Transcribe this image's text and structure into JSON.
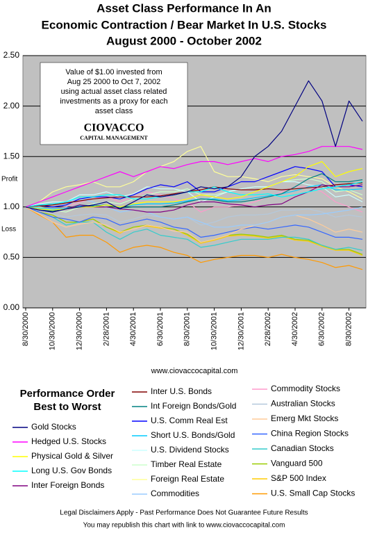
{
  "chart_data": {
    "type": "line",
    "title": [
      "Asset Class Performance In An",
      "Economic Contraction / Bear Market In U.S. Stocks",
      "August 2000 - October 2002"
    ],
    "annotations": {
      "box": [
        "Value of $1.00 invested from",
        "Aug 25 2000 to Oct 7, 2002",
        "using actual asset class related",
        "investments as a proxy for each",
        "asset class"
      ],
      "logo": "CIOVACCO",
      "logo_sub": "CAPITAL MANAGEMENT",
      "profit": "Profit",
      "loss": "Loss",
      "website": "www.ciovaccocapital.com"
    },
    "legend_title": [
      "Performance Order",
      "Best to Worst"
    ],
    "footer": [
      "Legal Disclaimers Apply - Past Performance Does Not Guarantee Future Results",
      "You may republish this chart with link to www.ciovaccocapital.com"
    ],
    "categories": [
      "8/30/2000",
      null,
      "10/30/2000",
      null,
      "12/30/2000",
      null,
      "2/28/2001",
      null,
      "4/30/2001",
      null,
      "6/30/2001",
      null,
      "8/30/2001",
      null,
      "10/30/2001",
      null,
      "12/30/2001",
      null,
      "2/28/2002",
      null,
      "4/30/2002",
      null,
      "6/30/2002",
      null,
      "8/30/2002",
      null
    ],
    "ylim": [
      0,
      2.5
    ],
    "yticks": [
      {
        "value": 0,
        "label": "0.00"
      },
      {
        "value": 0.5,
        "label": "0.50"
      },
      {
        "value": 1,
        "label": "1.00"
      },
      {
        "value": 1.5,
        "label": "1.50"
      },
      {
        "value": 2,
        "label": "2.00"
      },
      {
        "value": 2.5,
        "label": "2.50"
      }
    ],
    "grid": true,
    "series": [
      {
        "name": "Gold Stocks",
        "color": "#000080",
        "values": [
          1.0,
          0.97,
          0.95,
          0.98,
          1.0,
          1.02,
          1.05,
          0.98,
          1.05,
          1.12,
          1.1,
          1.12,
          1.15,
          1.2,
          1.18,
          1.2,
          1.3,
          1.5,
          1.6,
          1.75,
          2.0,
          2.25,
          2.05,
          1.6,
          2.05,
          1.85
        ]
      },
      {
        "name": "Hedged U.S. Stocks",
        "color": "#ff00ff",
        "values": [
          1.0,
          1.05,
          1.1,
          1.15,
          1.2,
          1.25,
          1.3,
          1.35,
          1.3,
          1.35,
          1.4,
          1.38,
          1.42,
          1.45,
          1.45,
          1.42,
          1.45,
          1.48,
          1.45,
          1.5,
          1.52,
          1.55,
          1.6,
          1.6,
          1.6,
          1.57
        ]
      },
      {
        "name": "Physical Gold & Silver",
        "color": "#ffff00",
        "values": [
          1.0,
          0.98,
          0.97,
          0.98,
          1.0,
          1.0,
          1.02,
          1.0,
          1.03,
          1.05,
          1.05,
          1.05,
          1.08,
          1.12,
          1.1,
          1.08,
          1.1,
          1.15,
          1.2,
          1.25,
          1.3,
          1.4,
          1.45,
          1.3,
          1.35,
          1.38
        ]
      },
      {
        "name": "Long U.S. Gov Bonds",
        "color": "#00ffff",
        "values": [
          1.0,
          1.02,
          1.03,
          1.05,
          1.1,
          1.1,
          1.12,
          1.12,
          1.08,
          1.08,
          1.1,
          1.12,
          1.15,
          1.15,
          1.2,
          1.15,
          1.12,
          1.12,
          1.13,
          1.1,
          1.12,
          1.15,
          1.18,
          1.2,
          1.22,
          1.25
        ]
      },
      {
        "name": "Inter Foreign Bonds",
        "color": "#800080",
        "values": [
          1.0,
          0.97,
          0.95,
          0.98,
          1.02,
          1.0,
          1.0,
          0.98,
          0.97,
          0.95,
          0.95,
          0.97,
          1.02,
          1.05,
          1.05,
          1.03,
          1.02,
          1.0,
          1.02,
          1.03,
          1.1,
          1.15,
          1.22,
          1.2,
          1.2,
          1.22
        ]
      },
      {
        "name": "Inter U.S. Bonds",
        "color": "#800000",
        "values": [
          1.0,
          1.01,
          1.02,
          1.04,
          1.06,
          1.08,
          1.09,
          1.1,
          1.1,
          1.1,
          1.11,
          1.13,
          1.15,
          1.17,
          1.2,
          1.18,
          1.17,
          1.17,
          1.18,
          1.17,
          1.18,
          1.19,
          1.2,
          1.22,
          1.23,
          1.24
        ]
      },
      {
        "name": "Int Foreign Bonds/Gold",
        "color": "#008080",
        "values": [
          1.0,
          0.97,
          0.96,
          0.98,
          1.02,
          1.01,
          1.02,
          0.99,
          1.0,
          1.0,
          1.0,
          1.02,
          1.05,
          1.08,
          1.07,
          1.05,
          1.05,
          1.07,
          1.1,
          1.13,
          1.2,
          1.28,
          1.33,
          1.25,
          1.25,
          1.27
        ]
      },
      {
        "name": "U.S. Comm Real Est",
        "color": "#0000ff",
        "values": [
          1.0,
          1.02,
          1.0,
          1.02,
          1.08,
          1.1,
          1.1,
          1.08,
          1.12,
          1.18,
          1.22,
          1.2,
          1.25,
          1.15,
          1.15,
          1.2,
          1.25,
          1.25,
          1.3,
          1.35,
          1.4,
          1.38,
          1.35,
          1.2,
          1.22,
          1.2
        ]
      },
      {
        "name": "Short U.S. Bonds/Gold",
        "color": "#00ccff",
        "values": [
          1.0,
          0.99,
          0.98,
          0.99,
          1.01,
          1.01,
          1.02,
          1.0,
          1.02,
          1.03,
          1.03,
          1.04,
          1.06,
          1.08,
          1.08,
          1.06,
          1.07,
          1.09,
          1.11,
          1.13,
          1.16,
          1.2,
          1.22,
          1.17,
          1.17,
          1.18
        ]
      },
      {
        "name": "U.S. Dividend Stocks",
        "color": "#ccffff",
        "values": [
          1.0,
          1.03,
          1.05,
          1.05,
          1.12,
          1.12,
          1.15,
          1.1,
          1.13,
          1.2,
          1.18,
          1.18,
          1.15,
          1.05,
          1.1,
          1.15,
          1.18,
          1.2,
          1.2,
          1.25,
          1.25,
          1.22,
          1.2,
          1.1,
          1.12,
          1.05
        ]
      },
      {
        "name": "Timber Real Estate",
        "color": "#ccffcc",
        "values": [
          1.0,
          1.0,
          0.97,
          0.95,
          1.0,
          1.03,
          1.05,
          1.03,
          1.08,
          1.12,
          1.15,
          1.15,
          1.18,
          1.12,
          1.12,
          1.15,
          1.18,
          1.2,
          1.2,
          1.25,
          1.27,
          1.28,
          1.25,
          1.15,
          1.17,
          1.12
        ]
      },
      {
        "name": "Foreign Real Estate",
        "color": "#ffff99",
        "values": [
          1.0,
          1.05,
          1.15,
          1.2,
          1.22,
          1.25,
          1.2,
          1.2,
          1.25,
          1.35,
          1.4,
          1.45,
          1.55,
          1.6,
          1.35,
          1.3,
          1.3,
          1.28,
          1.25,
          1.3,
          1.32,
          1.3,
          1.28,
          1.2,
          1.15,
          1.08
        ]
      },
      {
        "name": "Commodities",
        "color": "#99ccff",
        "values": [
          1.0,
          1.02,
          1.03,
          1.05,
          1.08,
          1.05,
          1.0,
          0.95,
          0.97,
          0.95,
          0.9,
          0.88,
          0.9,
          0.85,
          0.8,
          0.8,
          0.82,
          0.82,
          0.85,
          0.9,
          0.92,
          0.92,
          0.93,
          0.95,
          0.97,
          1.0
        ]
      },
      {
        "name": "Commodity Stocks",
        "color": "#ff99cc",
        "values": [
          1.0,
          1.0,
          0.98,
          1.0,
          1.05,
          1.08,
          1.1,
          1.05,
          1.1,
          1.15,
          1.12,
          1.08,
          1.05,
          0.95,
          1.0,
          1.0,
          1.02,
          1.05,
          1.1,
          1.15,
          1.2,
          1.2,
          1.15,
          1.05,
          1.0,
          0.95
        ]
      },
      {
        "name": "Australian Stocks",
        "color": "#b4c8dc",
        "values": [
          1.0,
          0.97,
          0.93,
          0.9,
          0.92,
          0.93,
          0.92,
          0.85,
          0.88,
          0.92,
          0.9,
          0.88,
          0.9,
          0.82,
          0.85,
          0.9,
          0.92,
          0.92,
          0.93,
          0.97,
          0.97,
          0.98,
          0.95,
          0.9,
          0.92,
          0.9
        ]
      },
      {
        "name": "Emerg Mkt Stocks",
        "color": "#ffcc99",
        "values": [
          1.0,
          0.93,
          0.85,
          0.8,
          0.83,
          0.85,
          0.82,
          0.75,
          0.78,
          0.82,
          0.8,
          0.76,
          0.75,
          0.65,
          0.68,
          0.72,
          0.78,
          0.82,
          0.85,
          0.9,
          0.92,
          0.88,
          0.82,
          0.75,
          0.78,
          0.75
        ]
      },
      {
        "name": "China Region Stocks",
        "color": "#3366ff",
        "values": [
          1.0,
          0.95,
          0.9,
          0.88,
          0.85,
          0.9,
          0.88,
          0.82,
          0.85,
          0.88,
          0.85,
          0.8,
          0.78,
          0.7,
          0.72,
          0.75,
          0.78,
          0.8,
          0.78,
          0.8,
          0.82,
          0.8,
          0.75,
          0.7,
          0.7,
          0.68
        ]
      },
      {
        "name": "Canadian Stocks",
        "color": "#33cccc",
        "values": [
          1.0,
          0.95,
          0.9,
          0.82,
          0.85,
          0.85,
          0.75,
          0.68,
          0.75,
          0.78,
          0.72,
          0.7,
          0.68,
          0.6,
          0.62,
          0.65,
          0.68,
          0.68,
          0.68,
          0.7,
          0.7,
          0.68,
          0.62,
          0.58,
          0.6,
          0.57
        ]
      },
      {
        "name": "Vanguard 500",
        "color": "#99cc00",
        "values": [
          1.0,
          0.95,
          0.92,
          0.85,
          0.85,
          0.88,
          0.8,
          0.75,
          0.8,
          0.82,
          0.8,
          0.78,
          0.73,
          0.65,
          0.68,
          0.72,
          0.73,
          0.72,
          0.7,
          0.72,
          0.68,
          0.67,
          0.62,
          0.58,
          0.58,
          0.53
        ]
      },
      {
        "name": "S&P 500 Index",
        "color": "#ffcc00",
        "values": [
          1.0,
          0.95,
          0.92,
          0.85,
          0.85,
          0.88,
          0.8,
          0.74,
          0.8,
          0.81,
          0.79,
          0.78,
          0.72,
          0.64,
          0.67,
          0.71,
          0.72,
          0.71,
          0.69,
          0.71,
          0.67,
          0.66,
          0.61,
          0.57,
          0.57,
          0.52
        ]
      },
      {
        "name": "U.S. Small Cap Stocks",
        "color": "#ff9900",
        "values": [
          1.0,
          0.92,
          0.85,
          0.7,
          0.72,
          0.72,
          0.65,
          0.55,
          0.6,
          0.62,
          0.6,
          0.55,
          0.52,
          0.45,
          0.48,
          0.5,
          0.52,
          0.52,
          0.5,
          0.53,
          0.5,
          0.48,
          0.45,
          0.4,
          0.42,
          0.38
        ]
      }
    ]
  }
}
